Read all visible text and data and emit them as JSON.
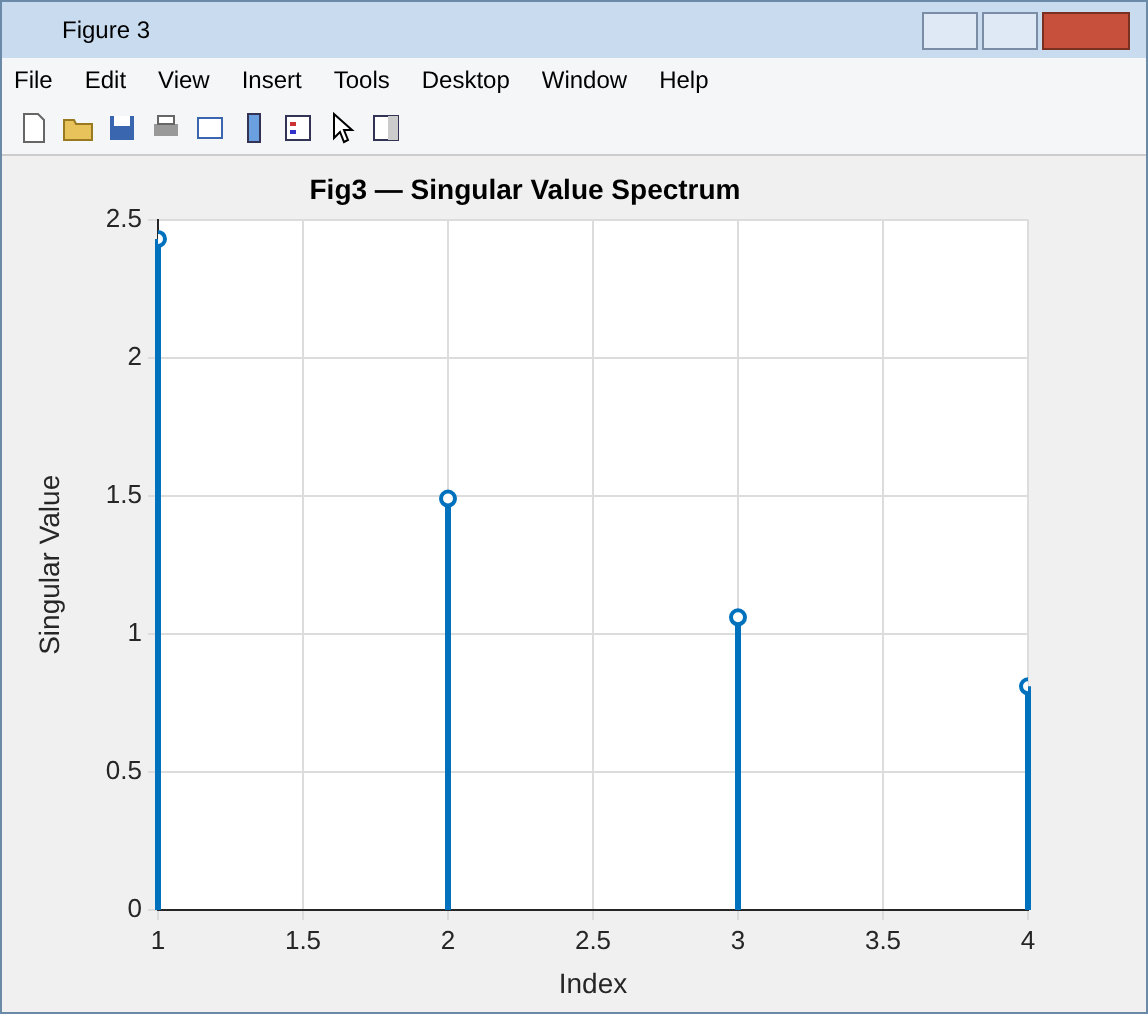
{
  "chart_data": {
    "type": "lollipop",
    "title": "Fig3 — Singular Value Spectrum",
    "xlabel": "Index",
    "ylabel": "Singular Value",
    "x": [
      1,
      2,
      3,
      4
    ],
    "series": [
      {
        "color": "#0072bd",
        "values": [
          2.43,
          1.49,
          1.06,
          0.81
        ]
      }
    ],
    "xlim": [
      1,
      4
    ],
    "xticks": [
      1,
      1.5,
      2,
      2.5,
      3,
      3.5,
      4
    ],
    "ylim": [
      0,
      2.5
    ],
    "yticks": [
      0,
      0.5,
      1,
      1.5,
      2,
      2.5
    ],
    "grid": true,
    "marker": "circle",
    "legend": false,
    "annotations": [
      "Figure 3",
      "File",
      "Edit",
      "View",
      "Insert",
      "Tools",
      "Desktop",
      "Window",
      "Help"
    ]
  }
}
